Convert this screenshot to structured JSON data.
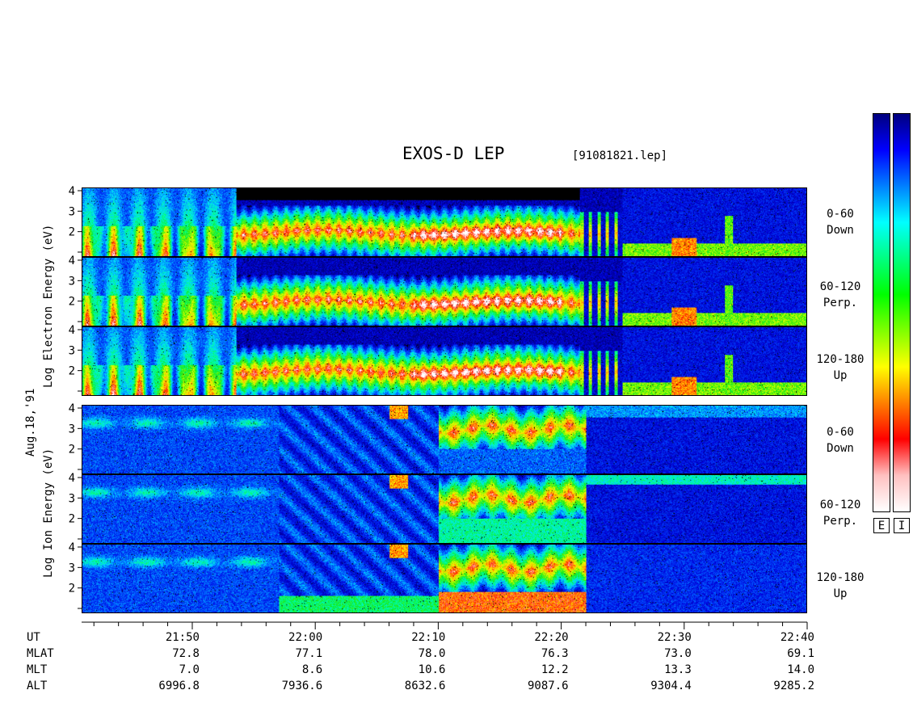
{
  "header": {
    "title": "EXOS-D LEP",
    "filename": "[91081821.lep]"
  },
  "left_labels": {
    "electron_axis": "Log Electron Energy (eV)",
    "date": "Aug.18,'91",
    "ion_axis": "Log Ion Energy (eV)"
  },
  "colorbar": {
    "electron_key": "E",
    "ion_key": "I",
    "colors_top_to_bottom": [
      "#00007f",
      "#0000ff",
      "#0080ff",
      "#00ffff",
      "#00ff80",
      "#00ff00",
      "#80ff00",
      "#ffff00",
      "#ff8000",
      "#ff0000",
      "#ffc0c0",
      "#ffffff"
    ]
  },
  "chart_data": {
    "type": "heatmap",
    "title": "EXOS-D LEP",
    "x_axis": {
      "name": "UT",
      "range": [
        "21:41",
        "22:40"
      ],
      "tick_labels": [
        "21:50",
        "22:00",
        "22:10",
        "22:20",
        "22:30",
        "22:40"
      ],
      "minor_tick_minutes": 2
    },
    "y_axis": {
      "scale": "log10 energy (eV)",
      "range": [
        1,
        4
      ],
      "tick_labels": [
        "4",
        "3",
        "2",
        ""
      ]
    },
    "panels": [
      {
        "species": "Electron",
        "pitch_angle": "0-60",
        "direction": "Down"
      },
      {
        "species": "Electron",
        "pitch_angle": "60-120",
        "direction": "Perp."
      },
      {
        "species": "Electron",
        "pitch_angle": "120-180",
        "direction": "Up"
      },
      {
        "species": "Ion",
        "pitch_angle": "0-60",
        "direction": "Down"
      },
      {
        "species": "Ion",
        "pitch_angle": "60-120",
        "direction": "Perp."
      },
      {
        "species": "Ion",
        "pitch_angle": "120-180",
        "direction": "Up"
      }
    ],
    "ephemeris": {
      "rows": [
        "UT",
        "MLAT",
        "MLT",
        "ALT"
      ],
      "times": [
        "21:50",
        "22:00",
        "22:10",
        "22:20",
        "22:30",
        "22:40"
      ],
      "MLAT": [
        "72.8",
        "77.1",
        "78.0",
        "76.3",
        "73.0",
        "69.1"
      ],
      "MLT": [
        "7.0",
        "8.6",
        "10.6",
        "12.2",
        "13.3",
        "14.0"
      ],
      "ALT": [
        "6996.8",
        "7936.6",
        "8632.6",
        "9087.6",
        "9304.4",
        "9285.2"
      ]
    }
  }
}
